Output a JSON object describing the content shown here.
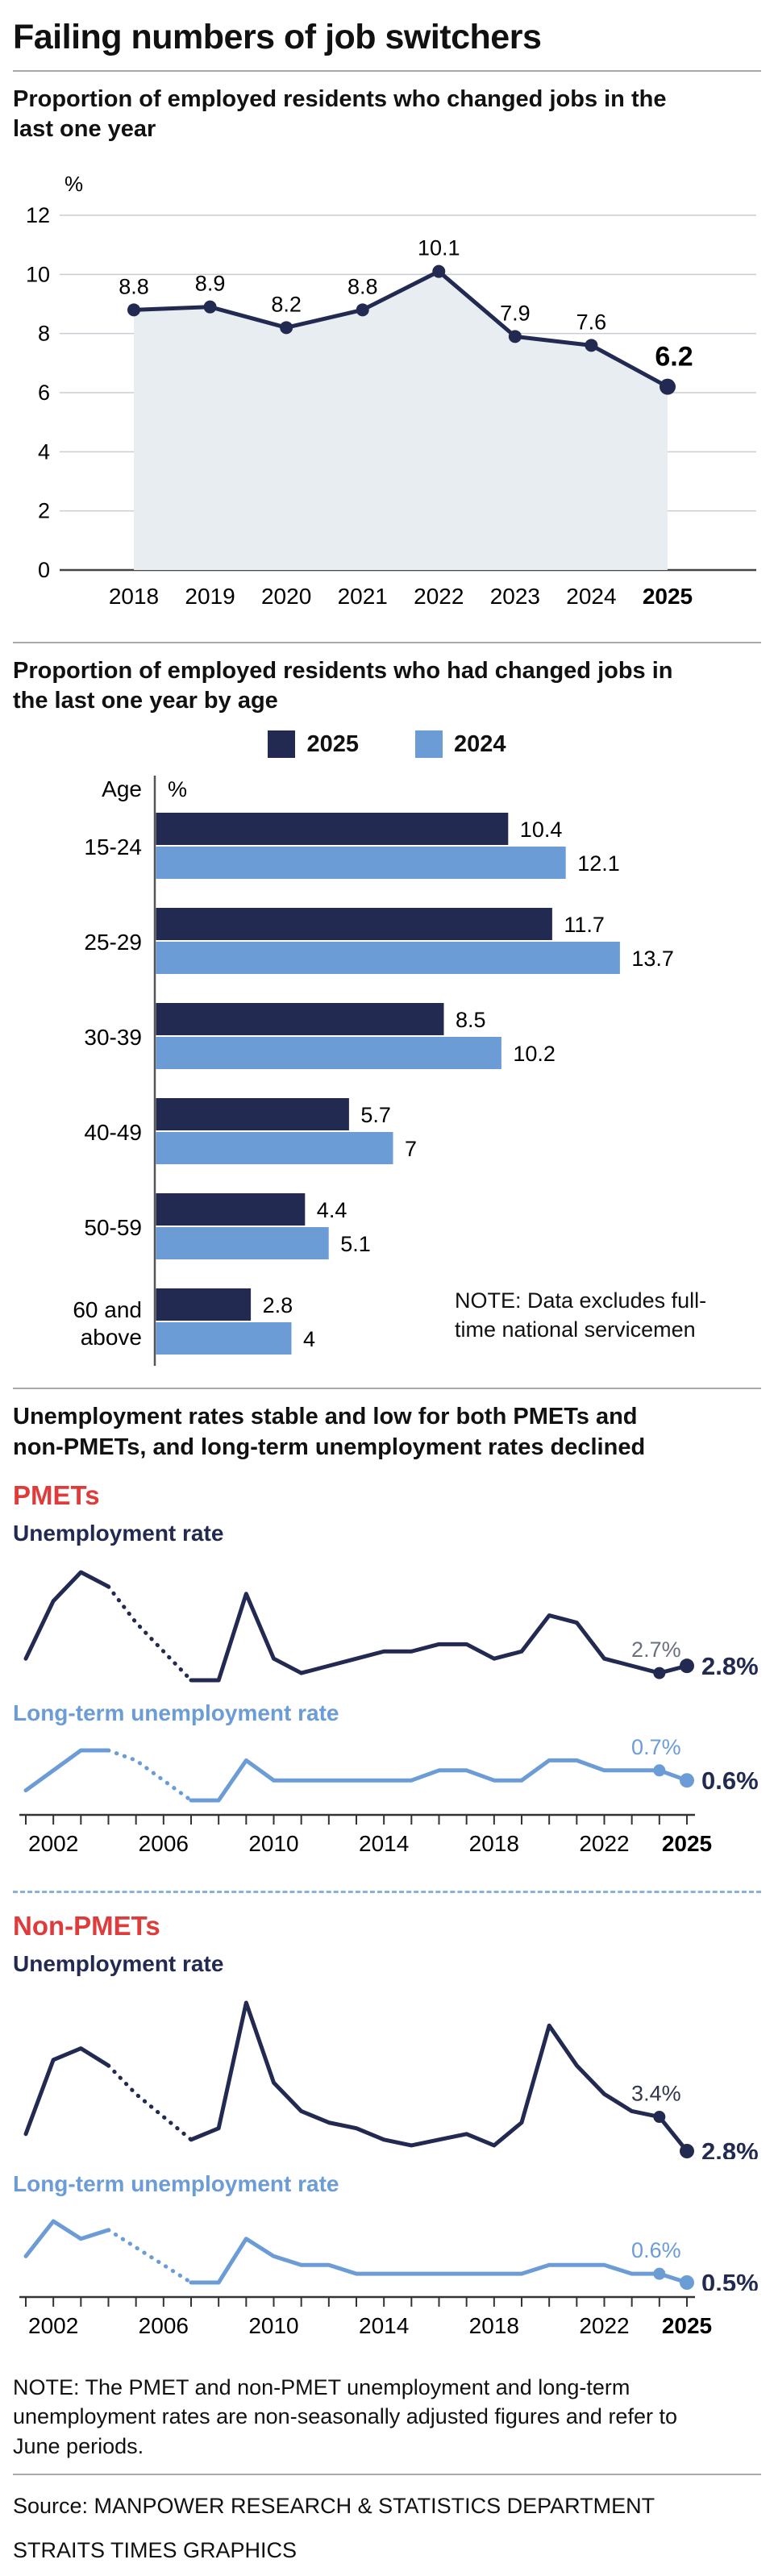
{
  "page": {
    "title": "Failing numbers of job switchers",
    "note": "NOTE: The PMET and non-PMET unemployment and long-term unemployment rates are non-seasonally adjusted figures and refer to June periods.",
    "source_line1": "Source: MANPOWER RESEARCH & STATISTICS DEPARTMENT",
    "source_line2": "STRAITS TIMES GRAPHICS"
  },
  "colors": {
    "navy": "#232a52",
    "blue": "#6b9cd6",
    "red": "#e03b3b",
    "area_fill": "#e8edf2",
    "grid": "#c8cdd4",
    "axis": "#333333",
    "label_gray": "#6a7080"
  },
  "sections": {
    "chart1": {
      "subtitle": "Proportion of employed residents who changed jobs in the last one year"
    },
    "chart2": {
      "subtitle": "Proportion of employed residents who had changed jobs in the last one year by age",
      "legend": {
        "y2025": "2025",
        "y2024": "2024"
      },
      "age_axis_label": "Age",
      "percent_label": "%",
      "note": "NOTE: Data excludes full-time national servicemen"
    },
    "unemployment": {
      "heading": "Unemployment rates stable and low for both PMETs and non-PMETs, and long-term unemployment rates declined",
      "pmet_label": "PMETs",
      "nonpmet_label": "Non-PMETs",
      "unemployment_rate_label": "Unemployment rate",
      "longterm_rate_label": "Long-term unemployment rate"
    }
  },
  "x_axis": {
    "tick_years": [
      2002,
      2006,
      2010,
      2014,
      2018,
      2022,
      2025
    ]
  },
  "chart_data": [
    {
      "id": "job-switchers",
      "type": "area",
      "title": "Proportion of employed residents who changed jobs in the last one year",
      "unit": "%",
      "categories": [
        2018,
        2019,
        2020,
        2021,
        2022,
        2023,
        2024,
        2025
      ],
      "values": [
        8.8,
        8.9,
        8.2,
        8.8,
        10.1,
        7.9,
        7.6,
        6.2
      ],
      "ylim": [
        0,
        12
      ],
      "yticks": [
        0,
        2,
        4,
        6,
        8,
        10,
        12
      ]
    },
    {
      "id": "job-switchers-by-age",
      "type": "bar",
      "orientation": "horizontal",
      "title": "Proportion of employed residents who had changed jobs in the last one year by age",
      "categories": [
        "15-24",
        "25-29",
        "30-39",
        "40-49",
        "50-59",
        "60 and above"
      ],
      "series": [
        {
          "name": "2025",
          "color": "navy",
          "values": [
            10.4,
            11.7,
            8.5,
            5.7,
            4.4,
            2.8
          ]
        },
        {
          "name": "2024",
          "color": "blue",
          "values": [
            12.1,
            13.7,
            10.2,
            7,
            5.1,
            4
          ]
        }
      ],
      "xlim": [
        0,
        14
      ],
      "note": "NOTE: Data excludes full-time national servicemen"
    },
    {
      "id": "pmet-unemployment",
      "type": "line",
      "title": "PMETs unemployment rate",
      "color": "navy",
      "x": [
        2001,
        2002,
        2003,
        2004,
        2005,
        2006,
        2007,
        2008,
        2009,
        2010,
        2011,
        2012,
        2013,
        2014,
        2015,
        2016,
        2017,
        2018,
        2019,
        2020,
        2021,
        2022,
        2023,
        2024,
        2025
      ],
      "values": [
        2.9,
        3.7,
        4.1,
        3.9,
        3.4,
        3.0,
        2.6,
        2.6,
        3.8,
        2.9,
        2.7,
        2.8,
        2.9,
        3.0,
        3.0,
        3.1,
        3.1,
        2.9,
        3.0,
        3.5,
        3.4,
        2.9,
        2.8,
        2.7,
        2.8
      ],
      "dashed_range": [
        3,
        6
      ],
      "label_2024": "2.7%",
      "label_2025": "2.8%",
      "label_2024_color": "#6a7080"
    },
    {
      "id": "pmet-longterm",
      "type": "line",
      "title": "PMETs long-term unemployment rate",
      "color": "blue",
      "x": [
        2001,
        2002,
        2003,
        2004,
        2005,
        2006,
        2007,
        2008,
        2009,
        2010,
        2011,
        2012,
        2013,
        2014,
        2015,
        2016,
        2017,
        2018,
        2019,
        2020,
        2021,
        2022,
        2023,
        2024,
        2025
      ],
      "values": [
        0.5,
        0.7,
        0.9,
        0.9,
        0.8,
        0.6,
        0.4,
        0.4,
        0.8,
        0.6,
        0.6,
        0.6,
        0.6,
        0.6,
        0.6,
        0.7,
        0.7,
        0.6,
        0.6,
        0.8,
        0.8,
        0.7,
        0.7,
        0.7,
        0.6
      ],
      "dashed_range": [
        3,
        6
      ],
      "label_2024": "0.7%",
      "label_2025": "0.6%",
      "label_2024_color": "#6b9cd6"
    },
    {
      "id": "nonpmet-unemployment",
      "type": "line",
      "title": "Non-PMETs unemployment rate",
      "color": "navy",
      "x": [
        2001,
        2002,
        2003,
        2004,
        2005,
        2006,
        2007,
        2008,
        2009,
        2010,
        2011,
        2012,
        2013,
        2014,
        2015,
        2016,
        2017,
        2018,
        2019,
        2020,
        2021,
        2022,
        2023,
        2024,
        2025
      ],
      "values": [
        3.1,
        4.4,
        4.6,
        4.3,
        3.8,
        3.4,
        3.0,
        3.2,
        5.4,
        4.0,
        3.5,
        3.3,
        3.2,
        3.0,
        2.9,
        3.0,
        3.1,
        2.9,
        3.3,
        5.0,
        4.3,
        3.8,
        3.5,
        3.4,
        2.8
      ],
      "dashed_range": [
        3,
        6
      ],
      "label_2024": "3.4%",
      "label_2025": "2.8%",
      "label_2024_color": "#30364f"
    },
    {
      "id": "nonpmet-longterm",
      "type": "line",
      "title": "Non-PMETs long-term unemployment rate",
      "color": "blue",
      "x": [
        2001,
        2002,
        2003,
        2004,
        2005,
        2006,
        2007,
        2008,
        2009,
        2010,
        2011,
        2012,
        2013,
        2014,
        2015,
        2016,
        2017,
        2018,
        2019,
        2020,
        2021,
        2022,
        2023,
        2024,
        2025
      ],
      "values": [
        0.8,
        1.2,
        1.0,
        1.1,
        0.9,
        0.7,
        0.5,
        0.5,
        1.0,
        0.8,
        0.7,
        0.7,
        0.6,
        0.6,
        0.6,
        0.6,
        0.6,
        0.6,
        0.6,
        0.7,
        0.7,
        0.7,
        0.6,
        0.6,
        0.5
      ],
      "dashed_range": [
        3,
        6
      ],
      "label_2024": "0.6%",
      "label_2025": "0.5%",
      "label_2024_color": "#6b9cd6"
    }
  ]
}
